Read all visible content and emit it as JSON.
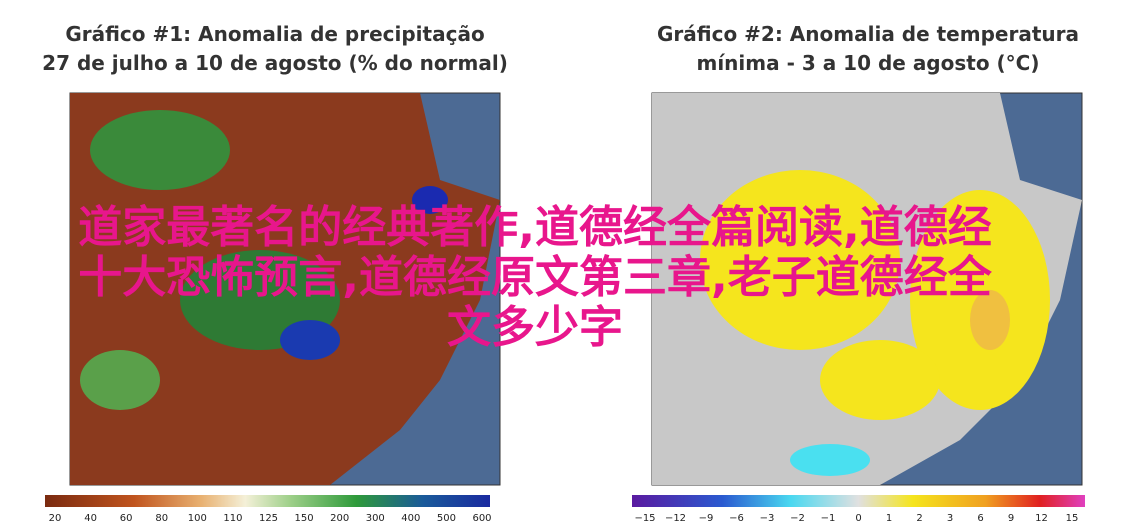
{
  "panels": [
    {
      "title_lines": [
        "Gráfico #1: Anomalia de precipitação",
        "27 de julho a 10 de agosto (% do normal)"
      ],
      "colorbar_labels": [
        "20",
        "40",
        "60",
        "80",
        "100",
        "110",
        "125",
        "150",
        "200",
        "300",
        "400",
        "500",
        "600"
      ]
    },
    {
      "title_lines": [
        "Gráfico #2: Anomalia de temperatura",
        "mínima - 3 a 10 de agosto (°C)"
      ],
      "colorbar_labels": [
        "−15",
        "−12",
        "−9",
        "−6",
        "−3",
        "−2",
        "−1",
        "0",
        "1",
        "2",
        "3",
        "6",
        "9",
        "12",
        "15"
      ]
    }
  ],
  "overlay_lines": [
    "道家最著名的经典著作,道德经全篇阅读,道德经",
    "十大恐怖预言,道德经原文第三章,老子道德经全",
    "文多少字"
  ]
}
